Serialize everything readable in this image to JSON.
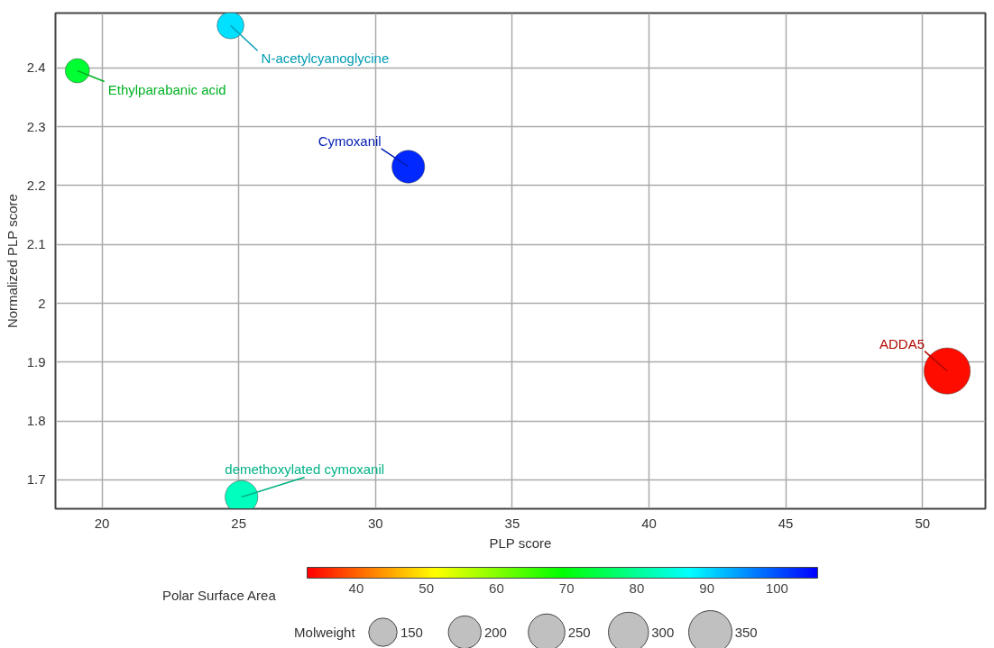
{
  "chart_data": {
    "type": "bubble",
    "xlabel": "PLP score",
    "ylabel": "Normalized PLP score",
    "clabel": "Polar Surface Area",
    "legend_title": "Molweight",
    "x": [
      19.1,
      24.7,
      31.2,
      25.1,
      50.9
    ],
    "values": [
      2.395,
      2.472,
      2.232,
      1.671,
      1.885
    ],
    "sizes": [
      110,
      135,
      200,
      200,
      400
    ],
    "cvalues": [
      73,
      90,
      103,
      83,
      34
    ],
    "size_legend": [
      150,
      200,
      250,
      300,
      350
    ],
    "clim": [
      33,
      105.8
    ],
    "cticks": [
      40,
      50,
      60,
      70,
      80,
      90,
      100
    ],
    "xlim": [
      18.3,
      52.3
    ],
    "ylim": [
      1.651,
      2.493
    ],
    "xticks": [
      20,
      25,
      30,
      35,
      40,
      45,
      50
    ],
    "yticks": [
      1.7,
      1.8,
      1.9,
      2,
      2.1,
      2.2,
      2.3,
      2.4
    ],
    "grid": true,
    "annotations": [
      {
        "text": "Ethylparabanic acid",
        "x": 19.1,
        "y": 2.395
      },
      {
        "text": "N-acetylcyanoglycine",
        "x": 24.7,
        "y": 2.472
      },
      {
        "text": "Cymoxanil",
        "x": 31.2,
        "y": 2.232
      },
      {
        "text": "demethoxylated cymoxanil",
        "x": 25.1,
        "y": 1.671
      },
      {
        "text": "ADDA5",
        "x": 50.9,
        "y": 1.885
      }
    ]
  }
}
